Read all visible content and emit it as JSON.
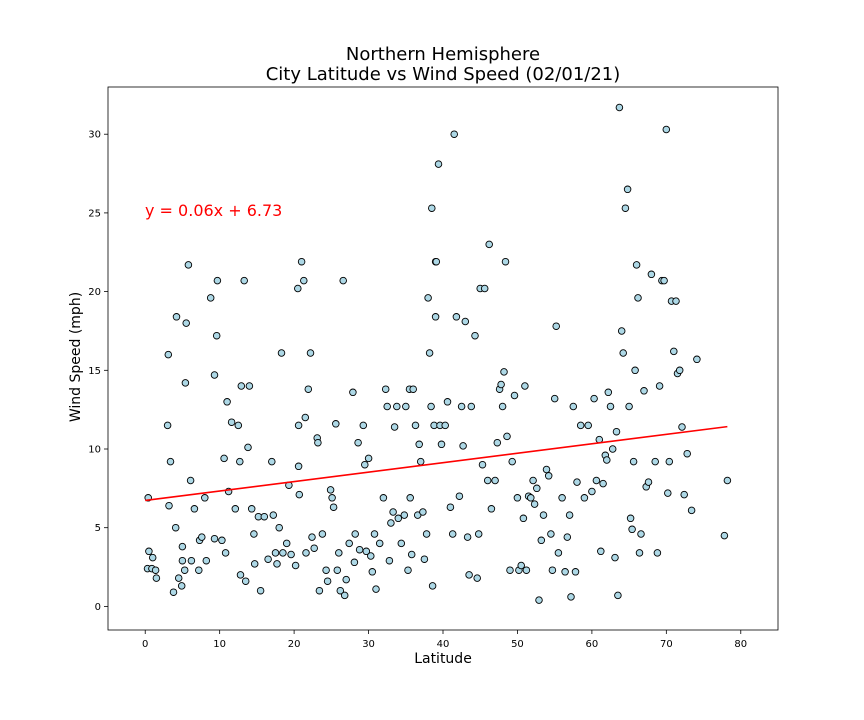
{
  "chart_data": {
    "type": "scatter",
    "title_line1": "Northern Hemisphere",
    "title_line2": "City Latitude vs Wind Speed (02/01/21)",
    "xlabel": "Latitude",
    "ylabel": "Wind Speed (mph)",
    "xlim": [
      -5,
      85
    ],
    "ylim": [
      -1.5,
      33
    ],
    "xticks": [
      0,
      10,
      20,
      30,
      40,
      50,
      60,
      70,
      80
    ],
    "yticks": [
      0,
      5,
      10,
      15,
      20,
      25,
      30
    ],
    "grid": false,
    "regression": {
      "equation": "y = 0.06x + 6.73",
      "slope": 0.06,
      "intercept": 6.73,
      "x_range": [
        0,
        78.2
      ],
      "color": "#ff0000"
    },
    "marker_face_color": "#add8e6",
    "marker_edge_color": "#000000",
    "points": [
      [
        0.3,
        2.4
      ],
      [
        0.4,
        6.9
      ],
      [
        0.5,
        3.5
      ],
      [
        0.9,
        2.4
      ],
      [
        1.0,
        3.1
      ],
      [
        1.4,
        2.3
      ],
      [
        1.5,
        1.8
      ],
      [
        3.0,
        11.5
      ],
      [
        3.1,
        16.0
      ],
      [
        3.2,
        6.4
      ],
      [
        3.4,
        9.2
      ],
      [
        3.8,
        0.9
      ],
      [
        4.1,
        5.0
      ],
      [
        4.2,
        18.4
      ],
      [
        4.5,
        1.8
      ],
      [
        4.9,
        1.3
      ],
      [
        5.0,
        3.8
      ],
      [
        5.0,
        2.9
      ],
      [
        5.3,
        2.3
      ],
      [
        5.4,
        14.2
      ],
      [
        5.5,
        18.0
      ],
      [
        5.8,
        21.7
      ],
      [
        6.1,
        8.0
      ],
      [
        6.2,
        2.9
      ],
      [
        6.6,
        6.2
      ],
      [
        7.2,
        2.3
      ],
      [
        7.3,
        4.2
      ],
      [
        7.6,
        4.4
      ],
      [
        8.0,
        6.9
      ],
      [
        8.2,
        2.9
      ],
      [
        8.8,
        19.6
      ],
      [
        9.3,
        14.7
      ],
      [
        9.3,
        4.3
      ],
      [
        9.6,
        17.2
      ],
      [
        9.7,
        20.7
      ],
      [
        10.3,
        4.2
      ],
      [
        10.6,
        9.4
      ],
      [
        10.8,
        3.4
      ],
      [
        11.0,
        13.0
      ],
      [
        11.2,
        7.3
      ],
      [
        11.6,
        11.7
      ],
      [
        12.1,
        6.2
      ],
      [
        12.5,
        11.5
      ],
      [
        12.7,
        9.2
      ],
      [
        12.8,
        2.0
      ],
      [
        12.9,
        14.0
      ],
      [
        13.3,
        20.7
      ],
      [
        13.5,
        1.6
      ],
      [
        13.8,
        10.1
      ],
      [
        14.0,
        14.0
      ],
      [
        14.3,
        6.2
      ],
      [
        14.6,
        4.6
      ],
      [
        14.7,
        2.7
      ],
      [
        15.2,
        5.7
      ],
      [
        15.5,
        1.0
      ],
      [
        16.0,
        5.7
      ],
      [
        16.5,
        3.0
      ],
      [
        17.0,
        9.2
      ],
      [
        17.2,
        5.8
      ],
      [
        17.5,
        3.4
      ],
      [
        17.7,
        2.7
      ],
      [
        18.0,
        5.0
      ],
      [
        18.3,
        16.1
      ],
      [
        18.5,
        3.4
      ],
      [
        19.0,
        4.0
      ],
      [
        19.3,
        7.7
      ],
      [
        19.6,
        3.3
      ],
      [
        20.2,
        2.6
      ],
      [
        20.5,
        20.2
      ],
      [
        20.6,
        11.5
      ],
      [
        20.6,
        8.9
      ],
      [
        20.7,
        7.1
      ],
      [
        21.0,
        21.9
      ],
      [
        21.3,
        20.7
      ],
      [
        21.5,
        12.0
      ],
      [
        21.6,
        3.4
      ],
      [
        21.9,
        13.8
      ],
      [
        22.2,
        16.1
      ],
      [
        22.4,
        4.4
      ],
      [
        22.7,
        3.7
      ],
      [
        23.1,
        10.7
      ],
      [
        23.2,
        10.4
      ],
      [
        23.4,
        1.0
      ],
      [
        23.8,
        4.6
      ],
      [
        24.3,
        2.3
      ],
      [
        24.5,
        1.6
      ],
      [
        24.9,
        7.4
      ],
      [
        25.1,
        6.9
      ],
      [
        25.3,
        6.3
      ],
      [
        25.6,
        11.6
      ],
      [
        25.8,
        2.3
      ],
      [
        26.0,
        3.4
      ],
      [
        26.2,
        1.0
      ],
      [
        26.6,
        20.7
      ],
      [
        26.8,
        0.7
      ],
      [
        27.0,
        1.7
      ],
      [
        27.4,
        4.0
      ],
      [
        27.9,
        13.6
      ],
      [
        28.1,
        2.8
      ],
      [
        28.2,
        4.6
      ],
      [
        28.6,
        10.4
      ],
      [
        28.8,
        3.6
      ],
      [
        29.3,
        11.5
      ],
      [
        29.5,
        9.0
      ],
      [
        29.7,
        3.5
      ],
      [
        30.0,
        9.4
      ],
      [
        30.3,
        3.2
      ],
      [
        30.5,
        2.2
      ],
      [
        30.8,
        4.6
      ],
      [
        31.0,
        1.1
      ],
      [
        31.5,
        4.0
      ],
      [
        32.0,
        6.9
      ],
      [
        32.3,
        13.8
      ],
      [
        32.5,
        12.7
      ],
      [
        32.8,
        2.9
      ],
      [
        33.0,
        5.3
      ],
      [
        33.3,
        6.0
      ],
      [
        33.5,
        11.4
      ],
      [
        33.8,
        12.7
      ],
      [
        34.0,
        5.6
      ],
      [
        34.4,
        4.0
      ],
      [
        34.8,
        5.8
      ],
      [
        35.0,
        12.7
      ],
      [
        35.3,
        2.3
      ],
      [
        35.5,
        13.8
      ],
      [
        35.6,
        6.9
      ],
      [
        35.8,
        3.3
      ],
      [
        36.0,
        13.8
      ],
      [
        36.3,
        11.5
      ],
      [
        36.6,
        5.8
      ],
      [
        36.8,
        10.3
      ],
      [
        37.0,
        9.2
      ],
      [
        37.3,
        6.0
      ],
      [
        37.5,
        3.0
      ],
      [
        37.8,
        4.6
      ],
      [
        38.0,
        19.6
      ],
      [
        38.2,
        16.1
      ],
      [
        38.4,
        12.7
      ],
      [
        38.5,
        25.3
      ],
      [
        38.6,
        1.3
      ],
      [
        38.8,
        11.5
      ],
      [
        39.0,
        18.4
      ],
      [
        39.0,
        21.9
      ],
      [
        39.1,
        21.9
      ],
      [
        39.4,
        28.1
      ],
      [
        39.6,
        11.5
      ],
      [
        39.8,
        10.3
      ],
      [
        40.3,
        11.5
      ],
      [
        40.6,
        13.0
      ],
      [
        41.0,
        6.3
      ],
      [
        41.3,
        4.6
      ],
      [
        41.5,
        30.0
      ],
      [
        41.8,
        18.4
      ],
      [
        42.2,
        7.0
      ],
      [
        42.5,
        12.7
      ],
      [
        42.7,
        10.2
      ],
      [
        43.0,
        18.1
      ],
      [
        43.3,
        4.4
      ],
      [
        43.5,
        2.0
      ],
      [
        43.8,
        12.7
      ],
      [
        44.3,
        17.2
      ],
      [
        44.6,
        1.8
      ],
      [
        44.8,
        4.6
      ],
      [
        45.0,
        20.2
      ],
      [
        45.3,
        9.0
      ],
      [
        45.6,
        20.2
      ],
      [
        46.0,
        8.0
      ],
      [
        46.2,
        23.0
      ],
      [
        46.5,
        6.2
      ],
      [
        47.0,
        8.0
      ],
      [
        47.3,
        10.4
      ],
      [
        47.6,
        13.8
      ],
      [
        47.8,
        14.1
      ],
      [
        48.0,
        12.7
      ],
      [
        48.2,
        14.9
      ],
      [
        48.4,
        21.9
      ],
      [
        48.6,
        10.8
      ],
      [
        49.0,
        2.3
      ],
      [
        49.3,
        9.2
      ],
      [
        49.6,
        13.4
      ],
      [
        50.0,
        6.9
      ],
      [
        50.2,
        2.3
      ],
      [
        50.5,
        2.6
      ],
      [
        50.8,
        5.6
      ],
      [
        51.0,
        14.0
      ],
      [
        51.2,
        2.3
      ],
      [
        51.5,
        7.0
      ],
      [
        51.8,
        6.9
      ],
      [
        52.1,
        8.0
      ],
      [
        52.3,
        6.5
      ],
      [
        52.6,
        7.5
      ],
      [
        52.9,
        0.4
      ],
      [
        53.2,
        4.2
      ],
      [
        53.5,
        5.8
      ],
      [
        53.9,
        8.7
      ],
      [
        54.2,
        8.3
      ],
      [
        54.5,
        4.6
      ],
      [
        54.7,
        2.3
      ],
      [
        55.0,
        13.2
      ],
      [
        55.2,
        17.8
      ],
      [
        55.5,
        3.4
      ],
      [
        56.0,
        6.9
      ],
      [
        56.4,
        2.2
      ],
      [
        56.7,
        4.4
      ],
      [
        57.0,
        5.8
      ],
      [
        57.2,
        0.6
      ],
      [
        57.5,
        12.7
      ],
      [
        57.8,
        2.2
      ],
      [
        58.0,
        7.9
      ],
      [
        58.5,
        11.5
      ],
      [
        59.0,
        6.9
      ],
      [
        59.5,
        11.5
      ],
      [
        60.0,
        7.3
      ],
      [
        60.3,
        13.2
      ],
      [
        60.6,
        8.0
      ],
      [
        61.0,
        10.6
      ],
      [
        61.2,
        3.5
      ],
      [
        61.5,
        7.8
      ],
      [
        61.8,
        9.6
      ],
      [
        62.0,
        9.3
      ],
      [
        62.2,
        13.6
      ],
      [
        62.5,
        12.7
      ],
      [
        62.8,
        10.0
      ],
      [
        63.1,
        3.1
      ],
      [
        63.3,
        11.1
      ],
      [
        63.5,
        0.7
      ],
      [
        63.7,
        31.7
      ],
      [
        64.0,
        17.5
      ],
      [
        64.2,
        16.1
      ],
      [
        64.5,
        25.3
      ],
      [
        64.8,
        26.5
      ],
      [
        65.0,
        12.7
      ],
      [
        65.2,
        5.6
      ],
      [
        65.4,
        4.9
      ],
      [
        65.6,
        9.2
      ],
      [
        65.8,
        15.0
      ],
      [
        66.0,
        21.7
      ],
      [
        66.2,
        19.6
      ],
      [
        66.4,
        3.4
      ],
      [
        66.6,
        4.6
      ],
      [
        67.0,
        13.7
      ],
      [
        67.3,
        7.6
      ],
      [
        67.6,
        7.9
      ],
      [
        68.0,
        21.1
      ],
      [
        68.5,
        9.2
      ],
      [
        68.8,
        3.4
      ],
      [
        69.1,
        14.0
      ],
      [
        69.4,
        20.7
      ],
      [
        69.7,
        20.7
      ],
      [
        70.0,
        30.3
      ],
      [
        70.2,
        7.2
      ],
      [
        70.4,
        9.2
      ],
      [
        70.7,
        19.4
      ],
      [
        71.0,
        16.2
      ],
      [
        71.3,
        19.4
      ],
      [
        71.5,
        14.8
      ],
      [
        71.8,
        15.0
      ],
      [
        72.1,
        11.4
      ],
      [
        72.4,
        7.1
      ],
      [
        72.8,
        9.7
      ],
      [
        73.4,
        6.1
      ],
      [
        74.1,
        15.7
      ],
      [
        77.8,
        4.5
      ],
      [
        78.2,
        8.0
      ]
    ]
  }
}
